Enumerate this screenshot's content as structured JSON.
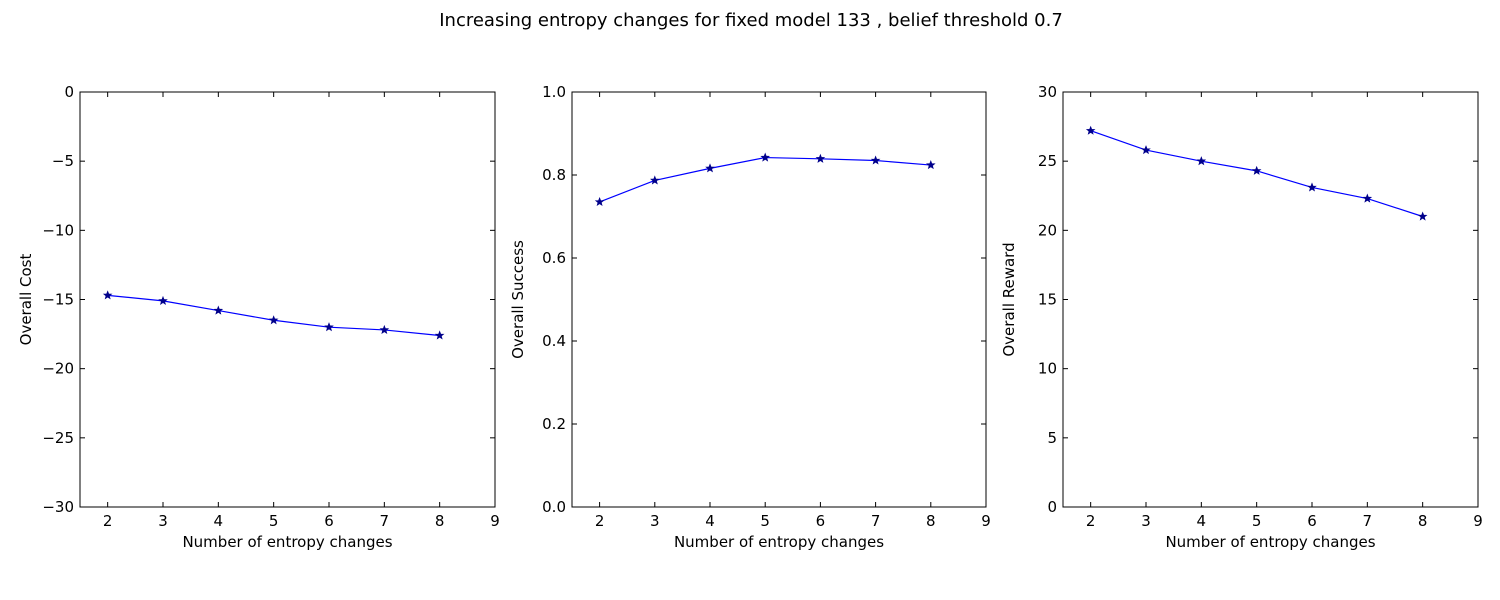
{
  "figure": {
    "title": "Increasing entropy changes for fixed model 133 , belief threshold 0.7"
  },
  "colors": {
    "line": "#0000ff",
    "marker": "#00008b",
    "axes": "#000000",
    "background": "#ffffff"
  },
  "chart_data": [
    {
      "type": "line",
      "title": "",
      "xlabel": "Number of entropy changes",
      "ylabel": "Overall Cost",
      "xlim": [
        1.5,
        9
      ],
      "ylim": [
        -30,
        0
      ],
      "xticks": [
        "2",
        "3",
        "4",
        "5",
        "6",
        "7",
        "8",
        "9"
      ],
      "yticks": [
        "0",
        "−5",
        "−10",
        "−15",
        "−20",
        "−25",
        "−30"
      ],
      "ytick_values": [
        0,
        -5,
        -10,
        -15,
        -20,
        -25,
        -30
      ],
      "xtick_values": [
        2,
        3,
        4,
        5,
        6,
        7,
        8,
        9
      ],
      "marker": "star",
      "grid": false,
      "x": [
        2,
        3,
        4,
        5,
        6,
        7,
        8
      ],
      "values": [
        -14.7,
        -15.1,
        -15.8,
        -16.5,
        -17.0,
        -17.2,
        -17.6
      ]
    },
    {
      "type": "line",
      "title": "",
      "xlabel": "Number of entropy changes",
      "ylabel": "Overall Success",
      "xlim": [
        1.5,
        9
      ],
      "ylim": [
        0.0,
        1.0
      ],
      "xticks": [
        "2",
        "3",
        "4",
        "5",
        "6",
        "7",
        "8",
        "9"
      ],
      "yticks": [
        "1.0",
        "0.8",
        "0.6",
        "0.4",
        "0.2",
        "0.0"
      ],
      "ytick_values": [
        1.0,
        0.8,
        0.6,
        0.4,
        0.2,
        0.0
      ],
      "xtick_values": [
        2,
        3,
        4,
        5,
        6,
        7,
        8,
        9
      ],
      "marker": "star",
      "grid": false,
      "x": [
        2,
        3,
        4,
        5,
        6,
        7,
        8
      ],
      "values": [
        0.735,
        0.787,
        0.816,
        0.842,
        0.839,
        0.835,
        0.824
      ]
    },
    {
      "type": "line",
      "title": "",
      "xlabel": "Number of entropy changes",
      "ylabel": "Overall Reward",
      "xlim": [
        1.5,
        9
      ],
      "ylim": [
        0,
        30
      ],
      "xticks": [
        "2",
        "3",
        "4",
        "5",
        "6",
        "7",
        "8",
        "9"
      ],
      "yticks": [
        "30",
        "25",
        "20",
        "15",
        "10",
        "5",
        "0"
      ],
      "ytick_values": [
        30,
        25,
        20,
        15,
        10,
        5,
        0
      ],
      "xtick_values": [
        2,
        3,
        4,
        5,
        6,
        7,
        8,
        9
      ],
      "marker": "star",
      "grid": false,
      "x": [
        2,
        3,
        4,
        5,
        6,
        7,
        8
      ],
      "values": [
        27.2,
        25.8,
        25.0,
        24.3,
        23.1,
        22.3,
        21.0
      ]
    }
  ]
}
